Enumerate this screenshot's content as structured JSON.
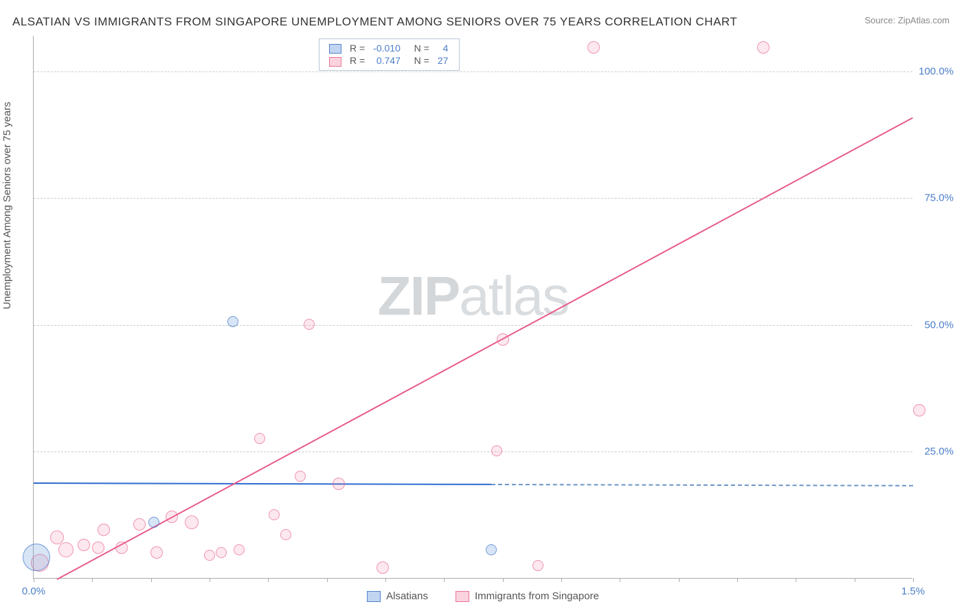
{
  "title": "ALSATIAN VS IMMIGRANTS FROM SINGAPORE UNEMPLOYMENT AMONG SENIORS OVER 75 YEARS CORRELATION CHART",
  "source": "Source: ZipAtlas.com",
  "y_axis_label": "Unemployment Among Seniors over 75 years",
  "watermark_bold": "ZIP",
  "watermark_light": "atlas",
  "chart": {
    "type": "scatter",
    "background_color": "#ffffff",
    "grid_color": "#cccccc",
    "axis_color": "#aaaaaa",
    "tick_label_color": "#4a7ec9",
    "xlim": [
      0.0,
      1.5
    ],
    "ylim": [
      0.0,
      107.0
    ],
    "x_ticks_minor_step": 0.1,
    "x_tick_labels": [
      {
        "x": 0.0,
        "label": "0.0%"
      },
      {
        "x": 1.5,
        "label": "1.5%"
      }
    ],
    "y_tick_labels": [
      {
        "y": 25.0,
        "label": "25.0%"
      },
      {
        "y": 50.0,
        "label": "50.0%"
      },
      {
        "y": 75.0,
        "label": "75.0%"
      },
      {
        "y": 100.0,
        "label": "100.0%"
      }
    ],
    "stats_legend": {
      "rows": [
        {
          "series": "blue",
          "r_label": "R =",
          "r_value": "-0.010",
          "n_label": "N =",
          "n_value": "4"
        },
        {
          "series": "pink",
          "r_label": "R =",
          "r_value": "0.747",
          "n_label": "N =",
          "n_value": "27"
        }
      ]
    },
    "bottom_legend": [
      {
        "series": "blue",
        "label": "Alsatians"
      },
      {
        "series": "pink",
        "label": "Immigrants from Singapore"
      }
    ],
    "series": {
      "blue": {
        "color_fill": "rgba(100,150,220,0.25)",
        "color_stroke": "rgba(70,120,200,0.7)",
        "trend_color": "#2e6bd0",
        "trend_from": {
          "x": 0.0,
          "y": 19.0
        },
        "trend_to": {
          "x": 1.5,
          "y": 18.5
        },
        "solid_until_x": 0.78,
        "points": [
          {
            "x": 0.005,
            "y": 4.0,
            "size": 40
          },
          {
            "x": 0.205,
            "y": 11.0,
            "size": 16
          },
          {
            "x": 0.34,
            "y": 50.5,
            "size": 16
          },
          {
            "x": 0.78,
            "y": 5.5,
            "size": 16
          }
        ]
      },
      "pink": {
        "color_fill": "rgba(240,130,160,0.18)",
        "color_stroke": "rgba(230,90,130,0.6)",
        "trend_color": "#e85a8c",
        "trend_from": {
          "x": 0.04,
          "y": 0.0
        },
        "trend_to": {
          "x": 1.5,
          "y": 91.0
        },
        "solid_until_x": 1.5,
        "points": [
          {
            "x": 0.01,
            "y": 3.0,
            "size": 26
          },
          {
            "x": 0.04,
            "y": 8.0,
            "size": 20
          },
          {
            "x": 0.055,
            "y": 5.5,
            "size": 22
          },
          {
            "x": 0.085,
            "y": 6.5,
            "size": 18
          },
          {
            "x": 0.11,
            "y": 6.0,
            "size": 18
          },
          {
            "x": 0.12,
            "y": 9.5,
            "size": 18
          },
          {
            "x": 0.15,
            "y": 6.0,
            "size": 18
          },
          {
            "x": 0.18,
            "y": 10.5,
            "size": 18
          },
          {
            "x": 0.21,
            "y": 5.0,
            "size": 18
          },
          {
            "x": 0.235,
            "y": 12.0,
            "size": 18
          },
          {
            "x": 0.27,
            "y": 11.0,
            "size": 20
          },
          {
            "x": 0.3,
            "y": 4.5,
            "size": 16
          },
          {
            "x": 0.32,
            "y": 5.0,
            "size": 16
          },
          {
            "x": 0.35,
            "y": 5.5,
            "size": 16
          },
          {
            "x": 0.385,
            "y": 27.5,
            "size": 16
          },
          {
            "x": 0.41,
            "y": 12.5,
            "size": 16
          },
          {
            "x": 0.43,
            "y": 8.5,
            "size": 16
          },
          {
            "x": 0.455,
            "y": 20.0,
            "size": 16
          },
          {
            "x": 0.47,
            "y": 50.0,
            "size": 16
          },
          {
            "x": 0.52,
            "y": 18.5,
            "size": 18
          },
          {
            "x": 0.595,
            "y": 2.0,
            "size": 18
          },
          {
            "x": 0.79,
            "y": 25.0,
            "size": 16
          },
          {
            "x": 0.8,
            "y": 47.0,
            "size": 18
          },
          {
            "x": 0.86,
            "y": 2.5,
            "size": 16
          },
          {
            "x": 0.955,
            "y": 104.5,
            "size": 18
          },
          {
            "x": 1.245,
            "y": 104.5,
            "size": 18
          },
          {
            "x": 1.51,
            "y": 33.0,
            "size": 18
          }
        ]
      }
    }
  }
}
